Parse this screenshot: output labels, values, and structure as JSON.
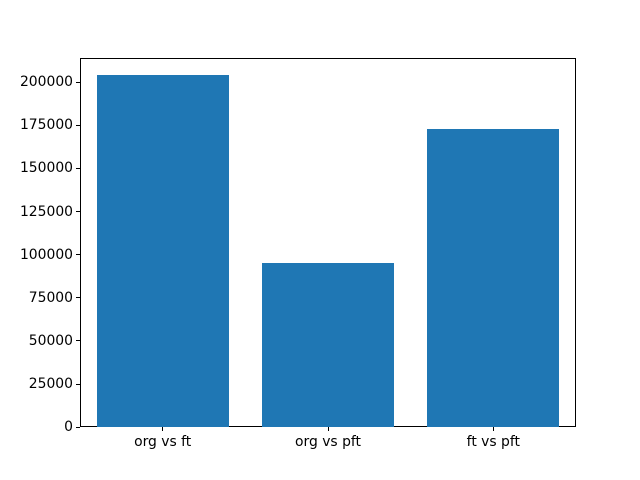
{
  "chart_data": {
    "type": "bar",
    "title": "",
    "xlabel": "",
    "ylabel": "",
    "categories": [
      "org vs ft",
      "org vs pft",
      "ft vs pft"
    ],
    "values": [
      204000,
      95000,
      173000
    ],
    "ylim": [
      0,
      214200
    ],
    "yticks": [
      0,
      25000,
      50000,
      75000,
      100000,
      125000,
      150000,
      175000,
      200000
    ],
    "ytick_labels": [
      "0",
      "25000",
      "50000",
      "75000",
      "100000",
      "125000",
      "150000",
      "175000",
      "200000"
    ],
    "grid": false,
    "legend": "none",
    "bar_color": "#1f77b4",
    "spine_color": "#000000",
    "tick_color": "#000000",
    "background_color": "#ffffff"
  }
}
